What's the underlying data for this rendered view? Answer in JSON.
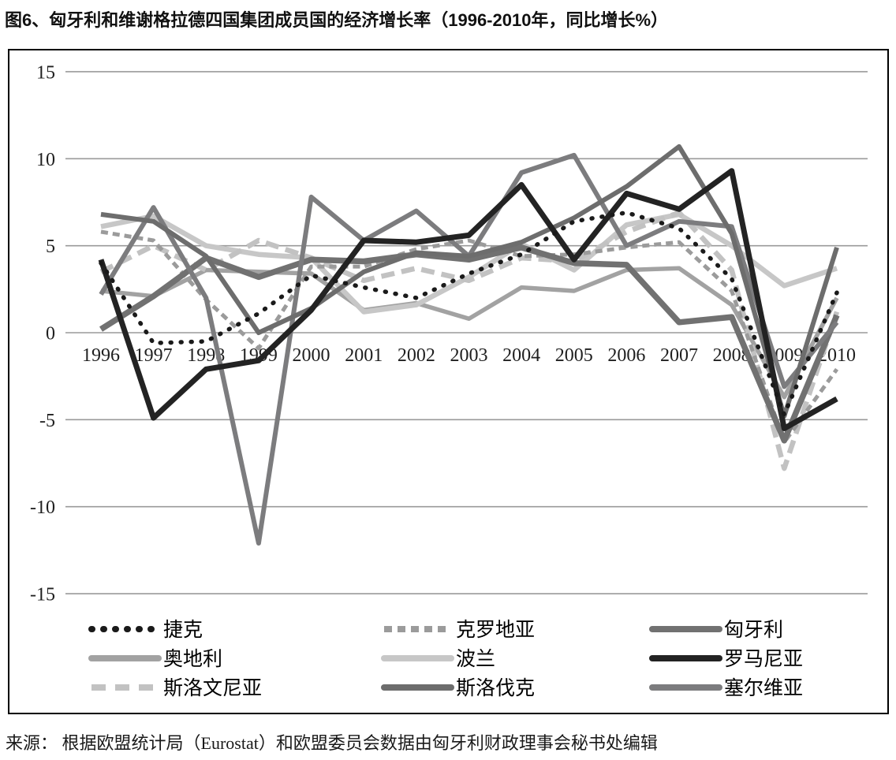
{
  "page": {
    "title": "图6、匈牙利和维谢格拉德四国集团成员国的经济增长率（1996-2010年，同比增长%）",
    "source": "来源： 根据欧盟统计局（Eurostat）和欧盟委员会数据由匈牙利财政理事会秘书处编辑"
  },
  "chart_data": {
    "type": "line",
    "title": "图6、匈牙利和维谢格拉德四国集团成员国的经济增长率（1996-2010年，同比增长%）",
    "unit": "同比增长%",
    "categories": [
      "1996",
      "1997",
      "1998",
      "1999",
      "2000",
      "2001",
      "2002",
      "2003",
      "2004",
      "2005",
      "2006",
      "2007",
      "2008",
      "2009",
      "2010"
    ],
    "ylim": [
      -15,
      15
    ],
    "yticks": [
      15,
      10,
      5,
      0,
      -5,
      -10,
      -15
    ],
    "grid": "horizontal-only",
    "legend_position": "inside-bottom-3-columns",
    "series": [
      {
        "name": "捷克",
        "color": "#1a1a1a",
        "dash": "dotted",
        "width": 5.5,
        "values": [
          4.0,
          -0.6,
          -0.5,
          1.1,
          3.3,
          2.6,
          2.0,
          3.4,
          4.5,
          6.4,
          6.9,
          6.0,
          3.1,
          -4.7,
          2.3
        ]
      },
      {
        "name": "克罗地亚",
        "color": "#9b9b9b",
        "dash": "short-dash",
        "width": 5.0,
        "values": [
          5.8,
          5.3,
          1.9,
          -0.9,
          3.8,
          3.8,
          4.8,
          5.3,
          4.4,
          4.5,
          4.9,
          5.2,
          2.4,
          -6.3,
          -2.1
        ]
      },
      {
        "name": "匈牙利",
        "color": "#717171",
        "dash": "solid",
        "width": 7.5,
        "values": [
          0.2,
          2.1,
          4.3,
          3.2,
          4.2,
          4.1,
          4.5,
          4.2,
          4.9,
          4.0,
          3.9,
          0.6,
          0.9,
          -6.2,
          1.0
        ]
      },
      {
        "name": "奥地利",
        "color": "#a2a2a2",
        "dash": "solid",
        "width": 5.5,
        "values": [
          2.4,
          2.1,
          3.6,
          3.5,
          3.4,
          1.3,
          1.7,
          0.8,
          2.6,
          2.4,
          3.6,
          3.7,
          1.6,
          -3.7,
          2.0
        ]
      },
      {
        "name": "波兰",
        "color": "#c7c7c7",
        "dash": "solid",
        "width": 6.5,
        "values": [
          6.1,
          6.7,
          5.0,
          4.5,
          4.3,
          1.2,
          1.6,
          3.2,
          5.1,
          3.6,
          6.2,
          6.8,
          5.0,
          2.7,
          3.7
        ]
      },
      {
        "name": "罗马尼亚",
        "color": "#232323",
        "dash": "solid",
        "width": 7.0,
        "values": [
          4.2,
          -4.9,
          -2.1,
          -1.6,
          1.3,
          5.3,
          5.2,
          5.6,
          8.5,
          4.2,
          8.0,
          7.1,
          9.3,
          -5.5,
          -3.8
        ]
      },
      {
        "name": "斯洛文尼亚",
        "color": "#c2c2c2",
        "dash": "long-dash",
        "width": 6.5,
        "values": [
          3.5,
          5.0,
          3.6,
          5.3,
          4.3,
          3.0,
          3.7,
          3.0,
          4.3,
          4.1,
          5.8,
          6.9,
          3.6,
          -7.8,
          1.2
        ]
      },
      {
        "name": "斯洛伐克",
        "color": "#6d6d6d",
        "dash": "solid",
        "width": 6.0,
        "values": [
          6.8,
          6.4,
          4.4,
          0.0,
          1.4,
          3.5,
          4.6,
          4.4,
          5.2,
          6.6,
          8.4,
          10.7,
          5.7,
          -4.8,
          4.9
        ]
      },
      {
        "name": "塞尔维亚",
        "color": "#7c7c7e",
        "dash": "solid",
        "width": 6.0,
        "values": [
          2.2,
          7.2,
          2.0,
          -12.1,
          7.8,
          5.3,
          7.0,
          4.4,
          9.2,
          10.2,
          5.0,
          6.4,
          6.1,
          -3.1,
          0.6
        ]
      }
    ],
    "draw_order": [
      "奥地利",
      "波兰",
      "斯洛文尼亚",
      "克罗地亚",
      "匈牙利",
      "塞尔维亚",
      "斯洛伐克",
      "罗马尼亚",
      "捷克"
    ]
  }
}
